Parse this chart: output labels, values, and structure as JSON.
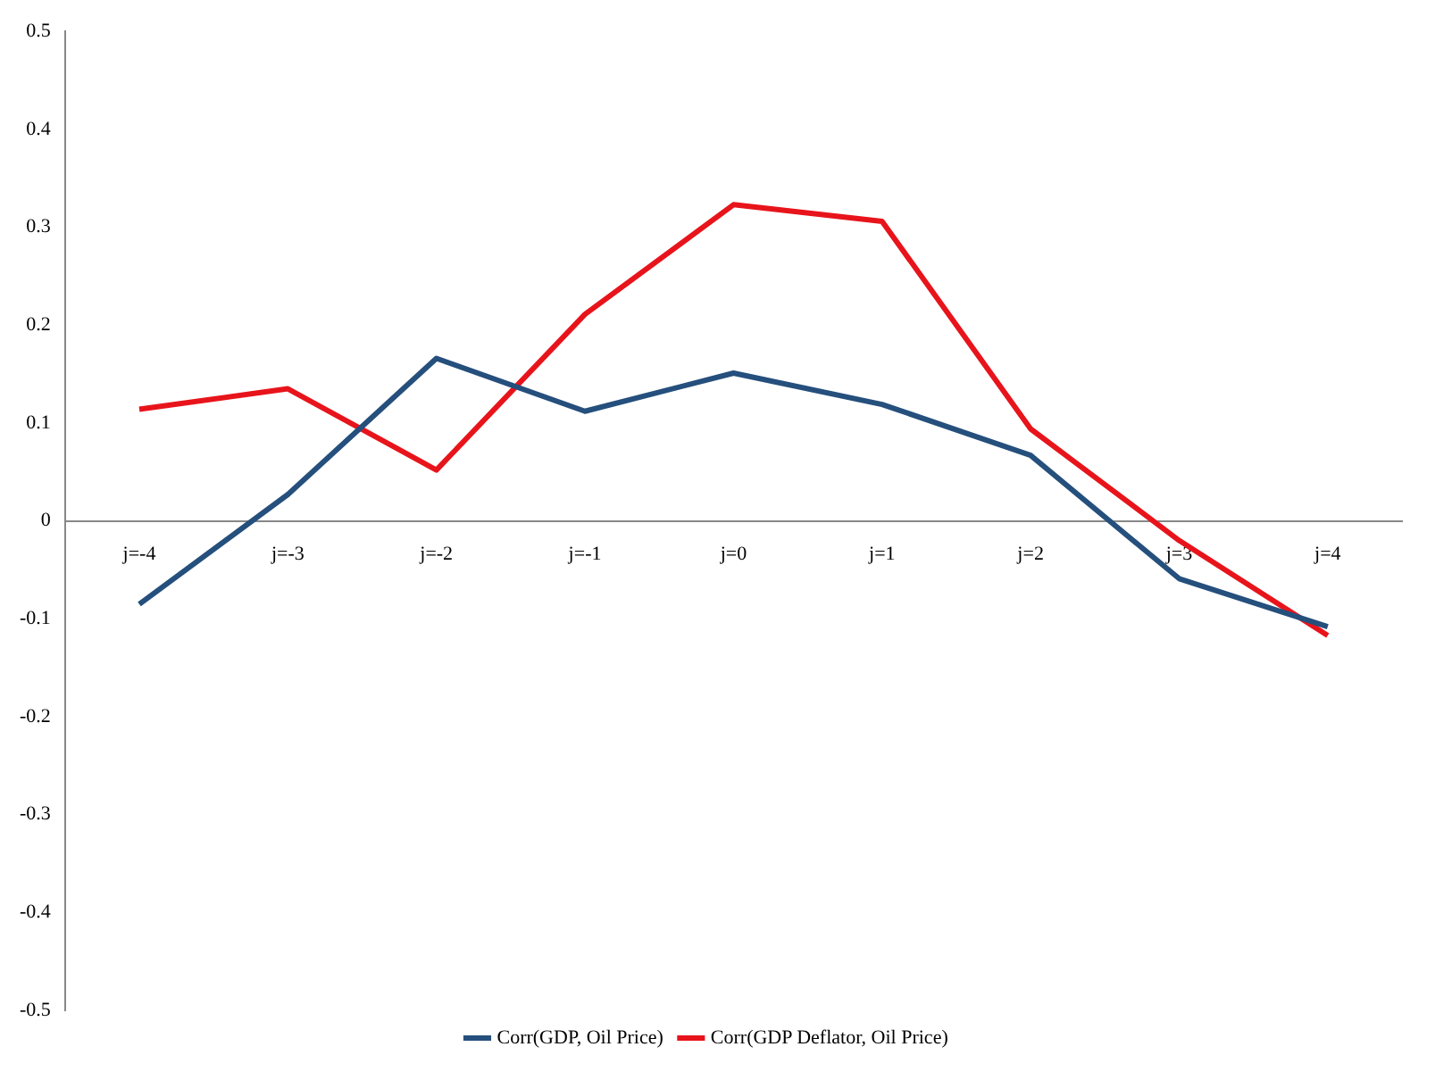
{
  "chart_data": {
    "type": "line",
    "categories": [
      "j=-4",
      "j=-3",
      "j=-2",
      "j=-1",
      "j=0",
      "j=1",
      "j=2",
      "j=3",
      "j=4"
    ],
    "series": [
      {
        "name": "Corr(GDP, Oil Price)",
        "color": "#254f7c",
        "values": [
          -0.085,
          0.027,
          0.166,
          0.112,
          0.151,
          0.119,
          0.067,
          -0.059,
          -0.108
        ]
      },
      {
        "name": "Corr(GDP Deflator, Oil Price)",
        "color": "#e8141b",
        "values": [
          0.114,
          0.135,
          0.052,
          0.211,
          0.323,
          0.306,
          0.094,
          -0.02,
          -0.117
        ]
      }
    ],
    "ylim": [
      -0.5,
      0.5
    ],
    "yticks": [
      -0.5,
      -0.4,
      -0.3,
      -0.2,
      -0.1,
      0,
      0.1,
      0.2,
      0.3,
      0.4,
      0.5
    ],
    "grid": false,
    "legend": "bottom",
    "marker": "none",
    "line_style": "solid"
  }
}
